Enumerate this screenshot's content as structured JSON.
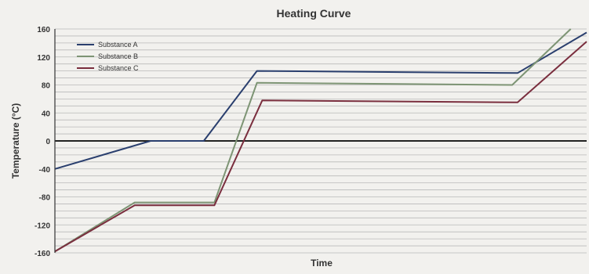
{
  "chart_data": {
    "type": "line",
    "title": "Heating Curve",
    "xlabel": "Time",
    "ylabel": "Temperature (°C)",
    "ylim": [
      -160,
      160
    ],
    "yticks": [
      160,
      120,
      80,
      40,
      0,
      -40,
      -80,
      -120,
      -160
    ],
    "xlim": [
      0,
      100
    ],
    "grid": true,
    "legend_position": "top-left",
    "series": [
      {
        "name": "Substance A",
        "color": "#2a3f6e",
        "x": [
          0,
          18,
          28,
          38,
          87,
          100
        ],
        "y": [
          -40,
          0,
          0,
          100,
          97,
          155
        ]
      },
      {
        "name": "Substance B",
        "color": "#7d9474",
        "x": [
          0,
          15,
          30,
          38,
          86,
          97
        ],
        "y": [
          -158,
          -88,
          -88,
          83,
          80,
          160
        ]
      },
      {
        "name": "Substance C",
        "color": "#7a2e3e",
        "x": [
          0,
          15,
          30,
          39,
          87,
          100
        ],
        "y": [
          -158,
          -92,
          -92,
          58,
          55,
          142
        ]
      }
    ]
  }
}
